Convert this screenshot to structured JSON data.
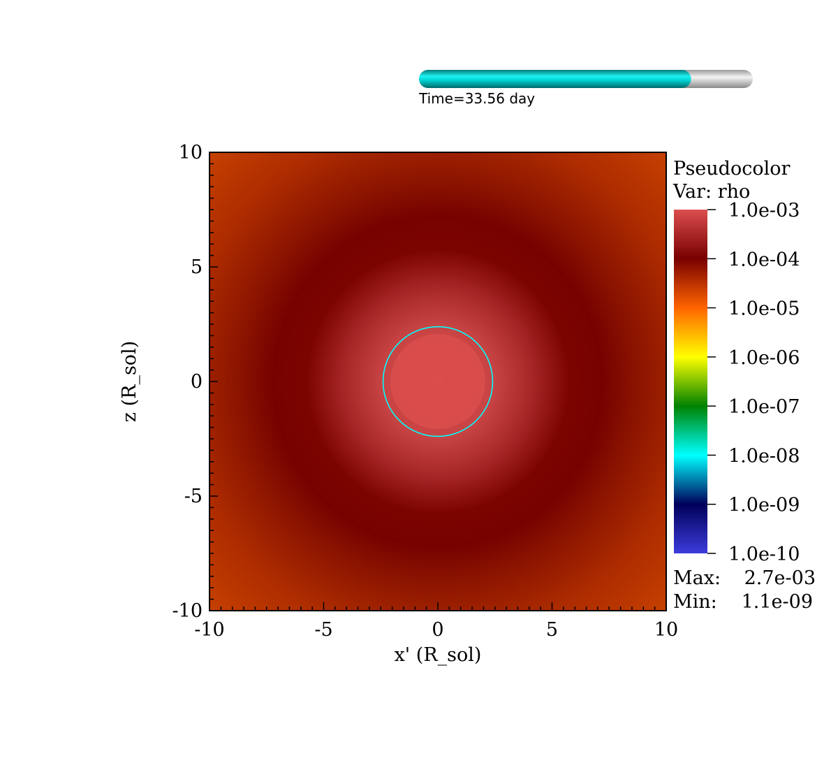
{
  "time_slider": {
    "label": "Time=33.56 day",
    "progress_fraction": 0.815
  },
  "legend": {
    "title": "Pseudocolor",
    "var_label": "Var: rho",
    "tick_labels": [
      "1.0e-03",
      "1.0e-04",
      "1.0e-05",
      "1.0e-06",
      "1.0e-07",
      "1.0e-08",
      "1.0e-09",
      "1.0e-10"
    ],
    "max_label": "Max:",
    "max_value": "2.7e-03",
    "min_label": "Min:",
    "min_value": "1.1e-09",
    "colormap": [
      "#3c3cdc",
      "#00005a",
      "#00ffff",
      "#008200",
      "#ffff00",
      "#ff6400",
      "#780000",
      "#dc4e4e"
    ]
  },
  "chart_data": {
    "type": "heatmap",
    "variable": "rho",
    "xlabel": "x' (R_sol)",
    "ylabel": "z (R_sol)",
    "xlim": [
      -10,
      10
    ],
    "ylim": [
      -10,
      10
    ],
    "x_ticks": [
      -10,
      -5,
      0,
      5,
      10
    ],
    "y_ticks": [
      -10,
      -5,
      0,
      5,
      10
    ],
    "x_tick_labels": [
      "-10",
      "-5",
      "0",
      "5",
      "10"
    ],
    "y_tick_labels": [
      "-10",
      "-5",
      "0",
      "5",
      "10"
    ],
    "color_scale": "log",
    "clim": [
      1e-10,
      0.001
    ],
    "max": 0.0027,
    "min": 1.1e-09,
    "circle_overlay": {
      "center": [
        0,
        0
      ],
      "radius": 2.4,
      "color": "#00ffff"
    },
    "field_regions": {
      "core_radius": 2.4,
      "core_color": "#dc4e4e",
      "shell_color": "#780000",
      "outer_color": "#c84200"
    }
  }
}
